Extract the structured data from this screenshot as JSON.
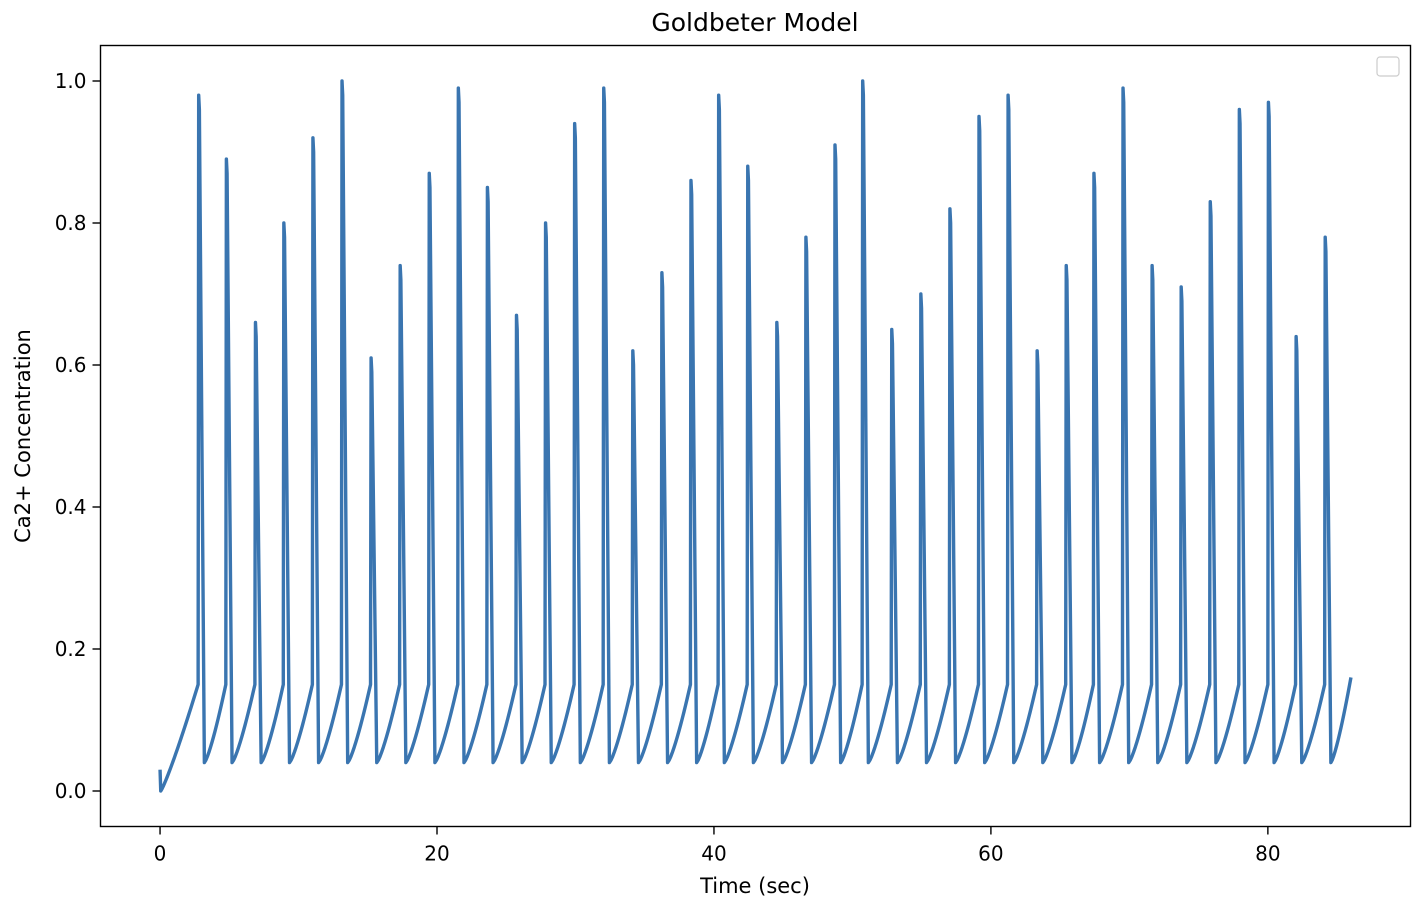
{
  "chart_data": {
    "type": "line",
    "title": "Goldbeter Model",
    "xlabel": "Time (sec)",
    "ylabel": "Ca2+ Concentration",
    "xlim": [
      -4.3,
      90.3
    ],
    "ylim": [
      -0.05,
      1.05
    ],
    "xticks": [
      0,
      20,
      40,
      60,
      80
    ],
    "yticks": [
      0.0,
      0.2,
      0.4,
      0.6,
      0.8,
      1.0
    ],
    "xtick_labels": [
      "0",
      "20",
      "40",
      "60",
      "80"
    ],
    "ytick_labels": [
      "0.0",
      "0.2",
      "0.4",
      "0.6",
      "0.8",
      "1.0"
    ],
    "grid": false,
    "legend": {
      "placement": "top-right",
      "entries": []
    },
    "series": [
      {
        "color": "#3a75b0",
        "start": {
          "x": 0.0,
          "y": 0.03
        },
        "first_min": {
          "x": 0.05,
          "y": 0.0
        },
        "trough": 0.04,
        "pre_spike": 0.15,
        "spike_times": [
          2.75,
          4.75,
          6.85,
          8.9,
          11.0,
          13.1,
          15.2,
          17.3,
          19.4,
          21.5,
          23.6,
          25.7,
          27.8,
          29.9,
          32.0,
          34.1,
          36.2,
          38.3,
          40.3,
          42.4,
          44.5,
          46.6,
          48.7,
          50.7,
          52.8,
          54.9,
          57.0,
          59.1,
          61.2,
          63.3,
          65.4,
          67.4,
          69.5,
          71.6,
          73.7,
          75.8,
          77.9,
          80.0,
          82.0,
          84.1
        ],
        "spike_peaks": [
          0.98,
          0.89,
          0.66,
          0.8,
          0.92,
          1.0,
          0.61,
          0.74,
          0.87,
          0.99,
          0.85,
          0.67,
          0.8,
          0.94,
          0.99,
          0.62,
          0.73,
          0.86,
          0.98,
          0.88,
          0.66,
          0.78,
          0.91,
          1.0,
          0.65,
          0.7,
          0.82,
          0.95,
          0.98,
          0.62,
          0.74,
          0.87,
          0.99,
          0.74,
          0.71,
          0.83,
          0.96,
          0.97,
          0.64,
          0.78
        ],
        "end": {
          "x": 86.0,
          "y": 0.16
        }
      }
    ]
  }
}
